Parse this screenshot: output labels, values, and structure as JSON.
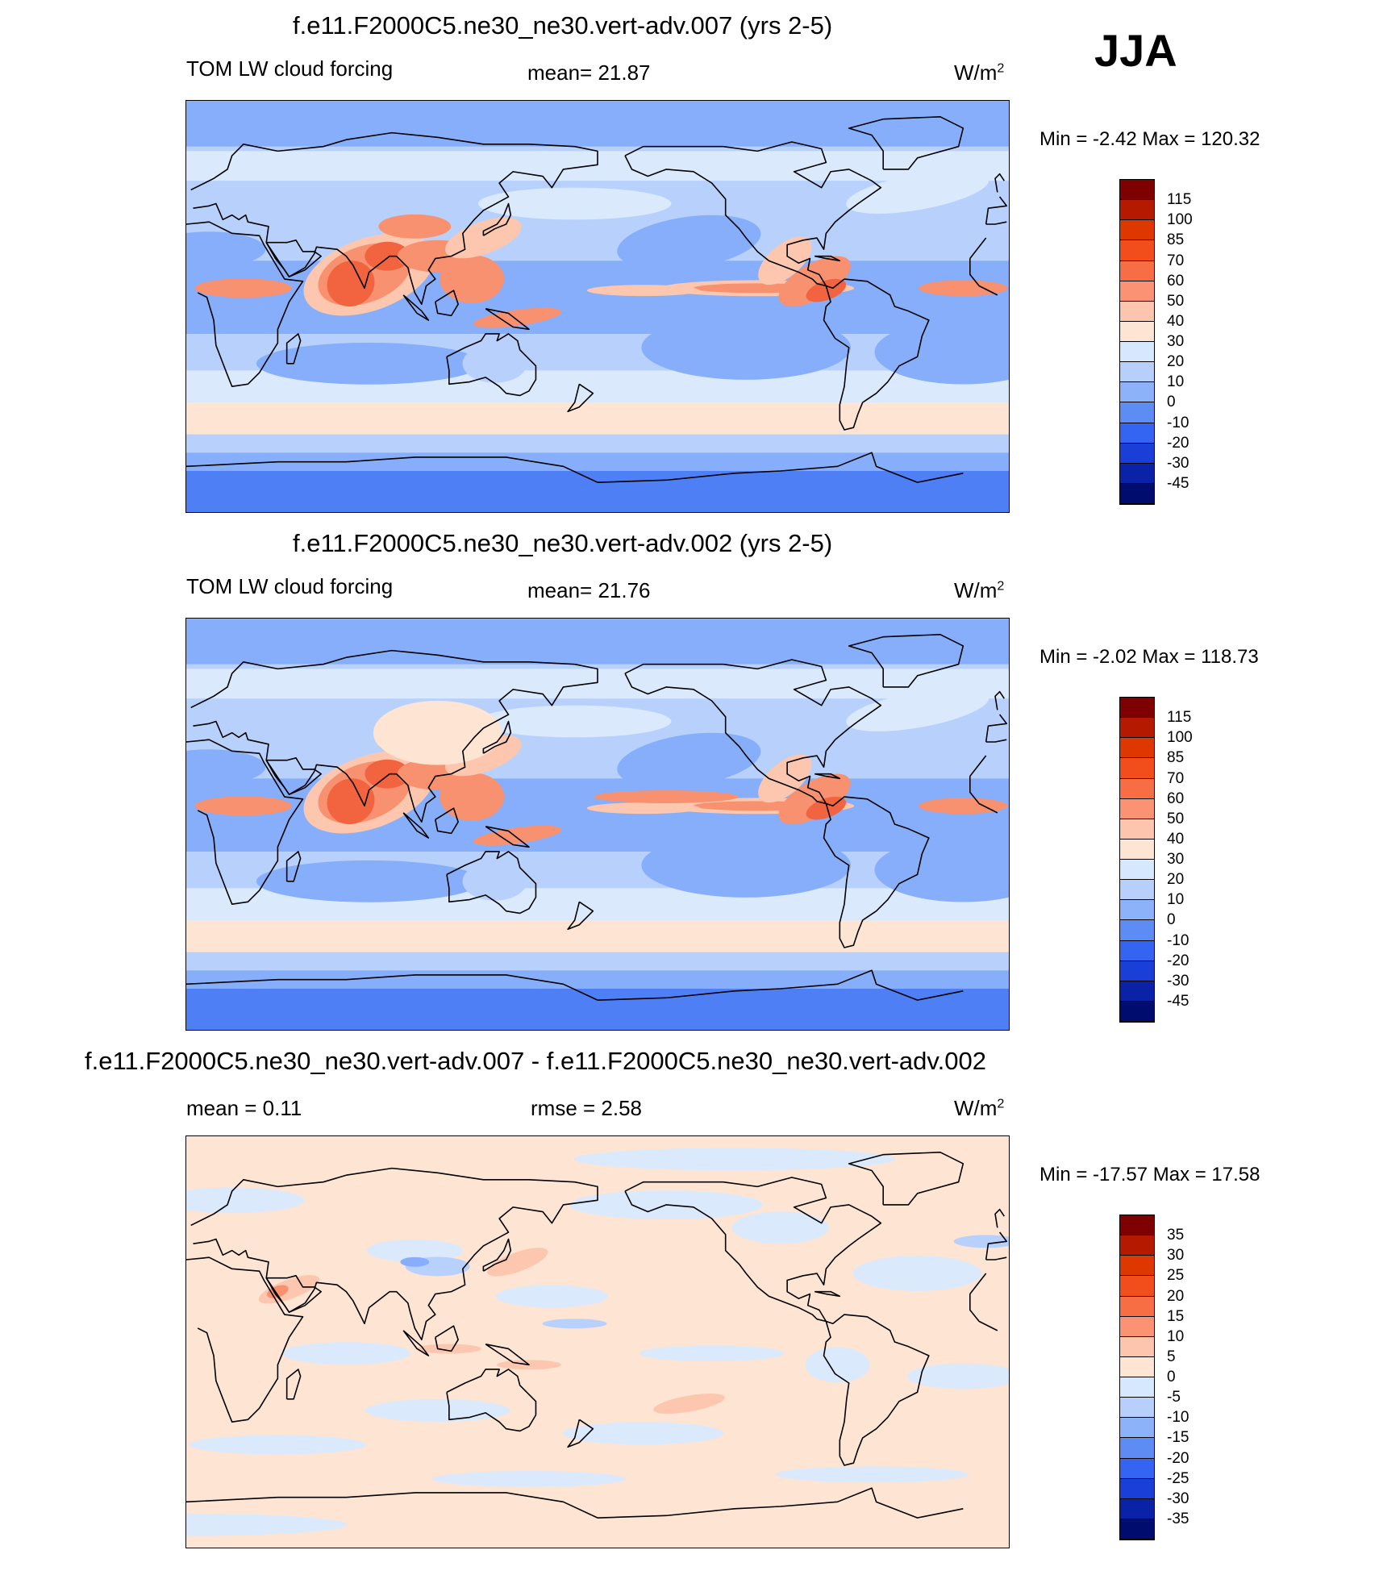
{
  "season": "JJA",
  "panels": [
    {
      "title": "f.e11.F2000C5.ne30_ne30.vert-adv.007 (yrs 2-5)",
      "left_label": "TOM LW cloud forcing",
      "center_label": "mean=  21.87",
      "units": "W/m",
      "units_sup": "2",
      "minmax": "Min =  -2.42 Max = 120.32",
      "kind": "abs",
      "variant": 0
    },
    {
      "title": "f.e11.F2000C5.ne30_ne30.vert-adv.002 (yrs 2-5)",
      "left_label": "TOM LW cloud forcing",
      "center_label": "mean=  21.76",
      "units": "W/m",
      "units_sup": "2",
      "minmax": "Min =  -2.02 Max = 118.73",
      "kind": "abs",
      "variant": 1
    },
    {
      "title": "f.e11.F2000C5.ne30_ne30.vert-adv.007 - f.e11.F2000C5.ne30_ne30.vert-adv.002",
      "left_label": "mean =   0.11",
      "center_label": "rmse =   2.58",
      "units": "W/m",
      "units_sup": "2",
      "minmax": "Min = -17.57 Max =  17.58",
      "kind": "diff",
      "variant": 2
    }
  ],
  "colorbars": {
    "abs": {
      "labels": [
        "115",
        "100",
        "85",
        "70",
        "60",
        "50",
        "40",
        "30",
        "20",
        "10",
        "0",
        "-10",
        "-20",
        "-30",
        "-45"
      ],
      "colors": [
        "#7f0000",
        "#b51a00",
        "#de3700",
        "#f24e1b",
        "#f76d44",
        "#fa9273",
        "#fdc5ad",
        "#fde4d3",
        "#d6e8fd",
        "#b6d0fb",
        "#8cb3fa",
        "#5d8cf5",
        "#3464f2",
        "#1a3fd8",
        "#0a22a8",
        "#000c6e"
      ]
    },
    "diff": {
      "labels": [
        "35",
        "30",
        "25",
        "20",
        "15",
        "10",
        "5",
        "0",
        "-5",
        "-10",
        "-15",
        "-20",
        "-25",
        "-30",
        "-35"
      ],
      "colors": [
        "#7f0000",
        "#b51a00",
        "#de3700",
        "#f24e1b",
        "#f76d44",
        "#fa9273",
        "#fdc5ad",
        "#fde4d3",
        "#d6e8fd",
        "#b6d0fb",
        "#8cb3fa",
        "#5d8cf5",
        "#3464f2",
        "#1a3fd8",
        "#0a22a8",
        "#000c6e"
      ]
    }
  },
  "map_palette": {
    "ocean_band_deep": "#4f7ff4",
    "ocean_band_mid": "#86aefa",
    "ocean_band_light": "#b7d1fc",
    "pale_blue": "#dbe9fd",
    "pale_peach": "#fde4d3",
    "peach": "#fcc7ae",
    "salmon": "#f8916f",
    "red_orange": "#f26440",
    "deep_red": "#e0421b"
  }
}
